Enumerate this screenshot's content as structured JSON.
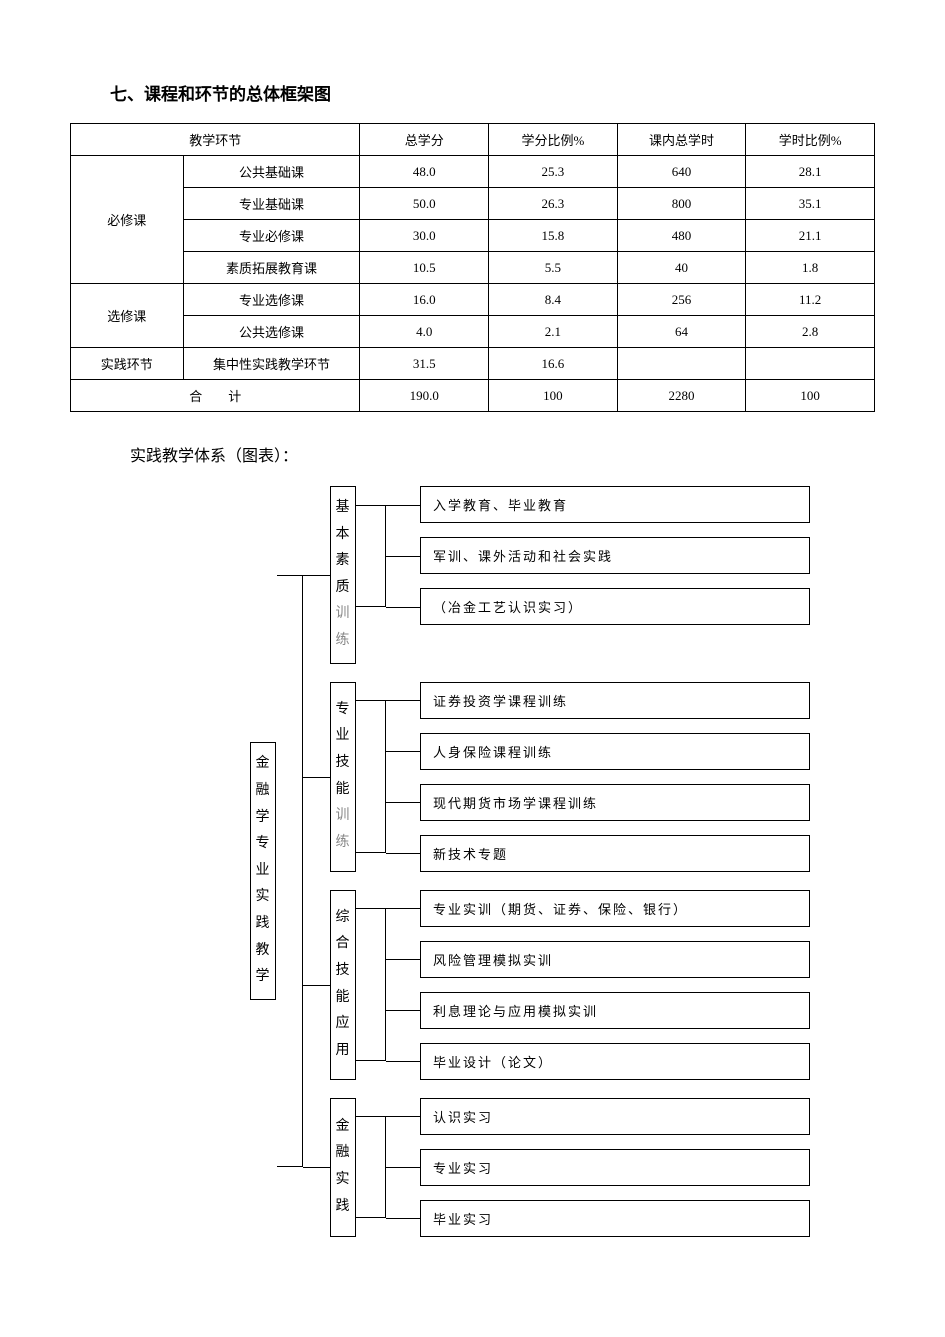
{
  "title": "七、课程和环节的总体框架图",
  "table": {
    "headers": [
      "教学环节",
      "总学分",
      "学分比例%",
      "课内总学时",
      "学时比例%"
    ],
    "groups": [
      {
        "label": "必修课",
        "rows": [
          [
            "公共基础课",
            "48.0",
            "25.3",
            "640",
            "28.1"
          ],
          [
            "专业基础课",
            "50.0",
            "26.3",
            "800",
            "35.1"
          ],
          [
            "专业必修课",
            "30.0",
            "15.8",
            "480",
            "21.1"
          ],
          [
            "素质拓展教育课",
            "10.5",
            "5.5",
            "40",
            "1.8"
          ]
        ]
      },
      {
        "label": "选修课",
        "rows": [
          [
            "专业选修课",
            "16.0",
            "8.4",
            "256",
            "11.2"
          ],
          [
            "公共选修课",
            "4.0",
            "2.1",
            "64",
            "2.8"
          ]
        ]
      },
      {
        "label": "实践环节",
        "rows": [
          [
            "集中性实践教学环节",
            "31.5",
            "16.6",
            "",
            ""
          ]
        ]
      }
    ],
    "total_label": "合　　计",
    "total": [
      "190.0",
      "100",
      "2280",
      "100"
    ]
  },
  "sub_title": "实践教学体系（图表）：",
  "tree": {
    "root": "金融学专业实践教学",
    "categories": [
      {
        "label": "基本素质",
        "gray_suffix": "训练",
        "leaves": [
          "入学教育、毕业教育",
          "军训、课外活动和社会实践",
          "（冶金工艺认识实习）"
        ]
      },
      {
        "label": "专业技能",
        "gray_suffix": "训练",
        "leaves": [
          "证券投资学课程训练",
          "人身保险课程训练",
          "现代期货市场学课程训练",
          "新技术专题"
        ]
      },
      {
        "label": "综合技能应用",
        "gray_suffix": "",
        "leaves": [
          "专业实训（期货、证券、保险、银行）",
          "风险管理模拟实训",
          "利息理论与应用模拟实训",
          "毕业设计（论文）"
        ]
      },
      {
        "label": "金融实践",
        "gray_suffix": "",
        "leaves": [
          "认识实习",
          "专业实习",
          "毕业实习"
        ]
      }
    ]
  },
  "colors": {
    "border": "#000000",
    "background": "#ffffff",
    "text": "#000000",
    "gray_text": "#888888"
  },
  "font": {
    "family": "SimSun",
    "title_size_pt": 13,
    "body_size_pt": 11
  }
}
